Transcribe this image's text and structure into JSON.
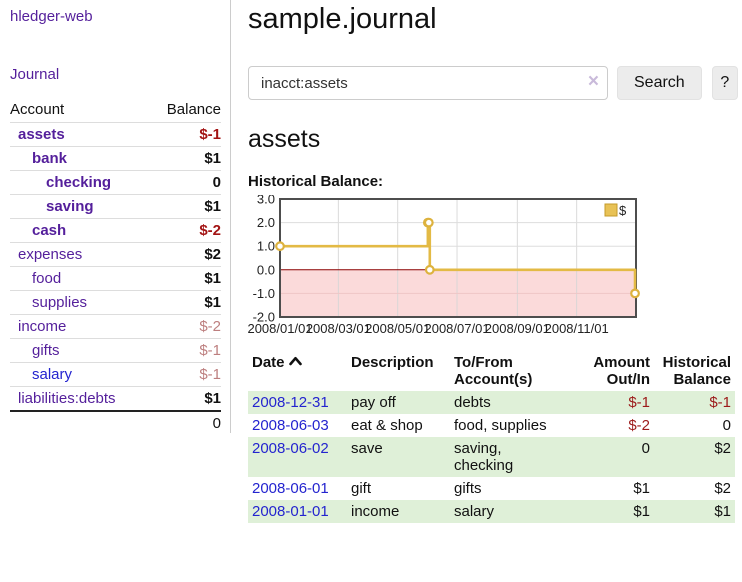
{
  "colors": {
    "link_purple": "#541f9b",
    "link_blue": "#2424cf",
    "negative_red": "#a31414",
    "dim_negative_rose": "#bd7f7f",
    "register_negative": "#9c1a1a",
    "zebra_green": "#dff0d8",
    "chart_line_gold": "#e3ba45",
    "chart_negative_pink": "#fbdada",
    "chart_zero_line": "#8b0000"
  },
  "sidebar": {
    "brand": "hledger-web",
    "nav": {
      "journal": "Journal"
    },
    "accounts_table": {
      "headers": {
        "account": "Account",
        "balance": "Balance"
      },
      "rows": [
        {
          "name": "assets",
          "balance": "$-1"
        },
        {
          "name": "bank",
          "balance": "$1"
        },
        {
          "name": "checking",
          "balance": "0"
        },
        {
          "name": "saving",
          "balance": "$1"
        },
        {
          "name": "cash",
          "balance": "$-2"
        },
        {
          "name": "expenses",
          "balance": "$2"
        },
        {
          "name": "food",
          "balance": "$1"
        },
        {
          "name": "supplies",
          "balance": "$1"
        },
        {
          "name": "income",
          "balance": "$-2"
        },
        {
          "name": "gifts",
          "balance": "$-1"
        },
        {
          "name": "salary",
          "balance": "$-1"
        },
        {
          "name": "liabilities:debts",
          "balance": "$1"
        }
      ],
      "total": "0"
    }
  },
  "header": {
    "title": "sample.journal"
  },
  "search": {
    "query": "inacct:assets",
    "clear_icon": "×",
    "button_label": "Search",
    "help_label": "?"
  },
  "account_page": {
    "heading": "assets",
    "chart_label": "Historical Balance:"
  },
  "chart_data": {
    "type": "line",
    "step": true,
    "title": "Historical Balance",
    "legend": "$",
    "legend_position": "top-right",
    "grid": true,
    "xlim": [
      "2008/01/01",
      "2009/01/01"
    ],
    "ylim": [
      -2.0,
      3.0
    ],
    "x_ticks": [
      "2008/01/01",
      "2008/03/01",
      "2008/05/01",
      "2008/07/01",
      "2008/09/01",
      "2008/11/01"
    ],
    "y_ticks": [
      "3.0",
      "2.0",
      "1.0",
      "0.0",
      "-1.0",
      "-2.0"
    ],
    "series": [
      {
        "name": "$",
        "points": [
          [
            "2008/01/01",
            1
          ],
          [
            "2008/06/01",
            2
          ],
          [
            "2008/06/02",
            2
          ],
          [
            "2008/06/03",
            0
          ],
          [
            "2008/12/31",
            -1
          ]
        ]
      }
    ]
  },
  "register": {
    "headers": {
      "date": "Date",
      "description": "Description",
      "tofrom_1": "To/From",
      "tofrom_2": "Account(s)",
      "amount_1": "Amount",
      "amount_2": "Out/In",
      "balance_1": "Historical",
      "balance_2": "Balance"
    },
    "rows": [
      {
        "date": "2008-12-31",
        "description": "pay off",
        "tofrom": "debts",
        "amount": "$-1",
        "balance": "$-1"
      },
      {
        "date": "2008-06-03",
        "description": "eat & shop",
        "tofrom": "food, supplies",
        "amount": "$-2",
        "balance": "0"
      },
      {
        "date": "2008-06-02",
        "description": "save",
        "tofrom": "saving, checking",
        "amount": "0",
        "balance": "$2"
      },
      {
        "date": "2008-06-01",
        "description": "gift",
        "tofrom": "gifts",
        "amount": "$1",
        "balance": "$2"
      },
      {
        "date": "2008-01-01",
        "description": "income",
        "tofrom": "salary",
        "amount": "$1",
        "balance": "$1"
      }
    ]
  }
}
